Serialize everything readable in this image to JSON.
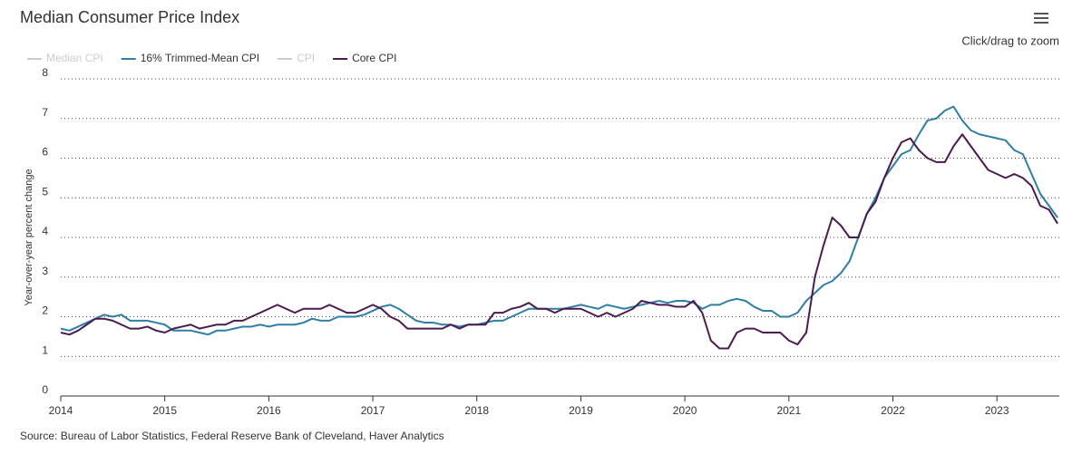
{
  "chart_data": {
    "type": "line",
    "title": "Median Consumer Price Index",
    "zoom_hint": "Click/drag to zoom",
    "source": "Source: Bureau of Labor Statistics, Federal Reserve Bank of Cleveland, Haver Analytics",
    "y_label": "Year-over-year percent change",
    "grid": true,
    "xlim": [
      2014,
      2023.6
    ],
    "xticks": [
      2014,
      2015,
      2016,
      2017,
      2018,
      2019,
      2020,
      2021,
      2022,
      2023
    ],
    "ylim": [
      0,
      8
    ],
    "yticks": [
      0,
      1,
      2,
      3,
      4,
      5,
      6,
      7,
      8
    ],
    "x": [
      2014,
      2014.083,
      2014.167,
      2014.25,
      2014.333,
      2014.417,
      2014.5,
      2014.583,
      2014.667,
      2014.75,
      2014.833,
      2014.917,
      2015,
      2015.083,
      2015.167,
      2015.25,
      2015.333,
      2015.417,
      2015.5,
      2015.583,
      2015.667,
      2015.75,
      2015.833,
      2015.917,
      2016,
      2016.083,
      2016.167,
      2016.25,
      2016.333,
      2016.417,
      2016.5,
      2016.583,
      2016.667,
      2016.75,
      2016.833,
      2016.917,
      2017,
      2017.083,
      2017.167,
      2017.25,
      2017.333,
      2017.417,
      2017.5,
      2017.583,
      2017.667,
      2017.75,
      2017.833,
      2017.917,
      2018,
      2018.083,
      2018.167,
      2018.25,
      2018.333,
      2018.417,
      2018.5,
      2018.583,
      2018.667,
      2018.75,
      2018.833,
      2018.917,
      2019,
      2019.083,
      2019.167,
      2019.25,
      2019.333,
      2019.417,
      2019.5,
      2019.583,
      2019.667,
      2019.75,
      2019.833,
      2019.917,
      2020,
      2020.083,
      2020.167,
      2020.25,
      2020.333,
      2020.417,
      2020.5,
      2020.583,
      2020.667,
      2020.75,
      2020.833,
      2020.917,
      2021,
      2021.083,
      2021.167,
      2021.25,
      2021.333,
      2021.417,
      2021.5,
      2021.583,
      2021.667,
      2021.75,
      2021.833,
      2021.917,
      2022,
      2022.083,
      2022.167,
      2022.25,
      2022.333,
      2022.417,
      2022.5,
      2022.583,
      2022.667,
      2022.75,
      2022.833,
      2022.917,
      2023,
      2023.083,
      2023.167,
      2023.25,
      2023.333,
      2023.417,
      2023.5,
      2023.583
    ],
    "series": [
      {
        "name": "Median CPI",
        "color": "#cccccc",
        "visible": false
      },
      {
        "name": "16% Trimmed-Mean CPI",
        "color": "#2e7ea6",
        "visible": true,
        "values": [
          1.7,
          1.65,
          1.75,
          1.85,
          1.95,
          2.05,
          2.0,
          2.05,
          1.9,
          1.9,
          1.9,
          1.85,
          1.8,
          1.65,
          1.65,
          1.65,
          1.6,
          1.55,
          1.65,
          1.65,
          1.7,
          1.75,
          1.75,
          1.8,
          1.75,
          1.8,
          1.8,
          1.8,
          1.85,
          1.95,
          1.9,
          1.9,
          2.0,
          2.0,
          2.0,
          2.05,
          2.15,
          2.25,
          2.3,
          2.2,
          2.05,
          1.9,
          1.85,
          1.85,
          1.8,
          1.8,
          1.75,
          1.8,
          1.8,
          1.85,
          1.9,
          1.9,
          2.0,
          2.1,
          2.2,
          2.2,
          2.2,
          2.2,
          2.2,
          2.25,
          2.3,
          2.25,
          2.2,
          2.3,
          2.25,
          2.2,
          2.25,
          2.3,
          2.35,
          2.4,
          2.35,
          2.4,
          2.4,
          2.35,
          2.2,
          2.3,
          2.3,
          2.4,
          2.45,
          2.4,
          2.25,
          2.15,
          2.15,
          2.0,
          2.0,
          2.1,
          2.4,
          2.6,
          2.8,
          2.9,
          3.1,
          3.4,
          4.0,
          4.6,
          5.0,
          5.5,
          5.8,
          6.1,
          6.2,
          6.6,
          6.95,
          7.0,
          7.2,
          7.3,
          6.95,
          6.7,
          6.6,
          6.55,
          6.5,
          6.45,
          6.2,
          6.1,
          5.6,
          5.1,
          4.8,
          4.5
        ]
      },
      {
        "name": "CPI",
        "color": "#cccccc",
        "visible": false
      },
      {
        "name": "Core CPI",
        "color": "#4b1a4f",
        "visible": true,
        "values": [
          1.6,
          1.55,
          1.65,
          1.8,
          1.95,
          1.95,
          1.9,
          1.8,
          1.7,
          1.7,
          1.75,
          1.65,
          1.6,
          1.7,
          1.75,
          1.8,
          1.7,
          1.75,
          1.8,
          1.8,
          1.9,
          1.9,
          2.0,
          2.1,
          2.2,
          2.3,
          2.2,
          2.1,
          2.2,
          2.2,
          2.2,
          2.3,
          2.2,
          2.1,
          2.1,
          2.2,
          2.3,
          2.2,
          2.0,
          1.9,
          1.7,
          1.7,
          1.7,
          1.7,
          1.7,
          1.8,
          1.7,
          1.8,
          1.8,
          1.8,
          2.1,
          2.1,
          2.2,
          2.25,
          2.35,
          2.2,
          2.2,
          2.1,
          2.2,
          2.2,
          2.2,
          2.1,
          2.0,
          2.1,
          2.0,
          2.1,
          2.2,
          2.4,
          2.35,
          2.3,
          2.3,
          2.25,
          2.25,
          2.4,
          2.1,
          1.4,
          1.2,
          1.2,
          1.6,
          1.7,
          1.7,
          1.6,
          1.6,
          1.6,
          1.4,
          1.3,
          1.6,
          3.0,
          3.8,
          4.5,
          4.3,
          4.0,
          4.0,
          4.6,
          4.9,
          5.5,
          6.0,
          6.4,
          6.5,
          6.2,
          6.0,
          5.9,
          5.9,
          6.3,
          6.6,
          6.3,
          6.0,
          5.7,
          5.6,
          5.5,
          5.6,
          5.5,
          5.3,
          4.8,
          4.7,
          4.35
        ]
      }
    ]
  }
}
